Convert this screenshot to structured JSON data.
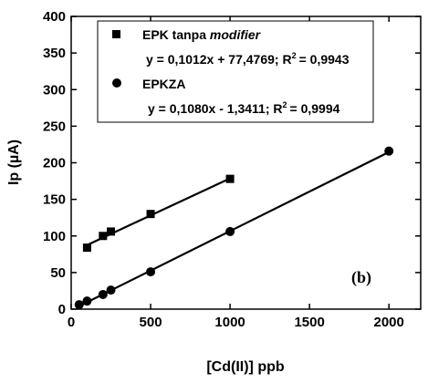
{
  "chart_data": {
    "type": "scatter",
    "xlabel": "[Cd(II)] ppb",
    "ylabel": "Ip (µA)",
    "xlim": [
      0,
      2200
    ],
    "ylim": [
      0,
      400
    ],
    "x_ticks": [
      0,
      500,
      1000,
      1500,
      2000
    ],
    "y_ticks": [
      0,
      50,
      100,
      150,
      200,
      250,
      300,
      350,
      400
    ],
    "panel_label": "(b)",
    "grid": false,
    "legend_position": "top-center",
    "series": [
      {
        "name_prefix": "EPK tanpa ",
        "name_emph": "modifier",
        "marker": "square",
        "equation": "y = 0,1012x + 77,4769; R",
        "equation_r2": "= 0,9943",
        "fit": {
          "slope": 0.1012,
          "intercept": 77.4769
        },
        "fit_range": [
          100,
          1000
        ],
        "x": [
          100,
          200,
          250,
          500,
          1000
        ],
        "y": [
          84,
          100,
          106,
          130,
          178
        ]
      },
      {
        "name_prefix": "EPKZA",
        "name_emph": "",
        "marker": "circle",
        "equation": "y = 0,1080x - 1,3411; R",
        "equation_r2": "= 0,9994",
        "fit": {
          "slope": 0.108,
          "intercept": -1.3411
        },
        "fit_range": [
          50,
          2000
        ],
        "x": [
          50,
          100,
          200,
          250,
          500,
          1000,
          2000
        ],
        "y": [
          6,
          11,
          20,
          26,
          51,
          106,
          216
        ]
      }
    ]
  },
  "colors": {
    "ink": "#000000",
    "background": "#ffffff"
  }
}
